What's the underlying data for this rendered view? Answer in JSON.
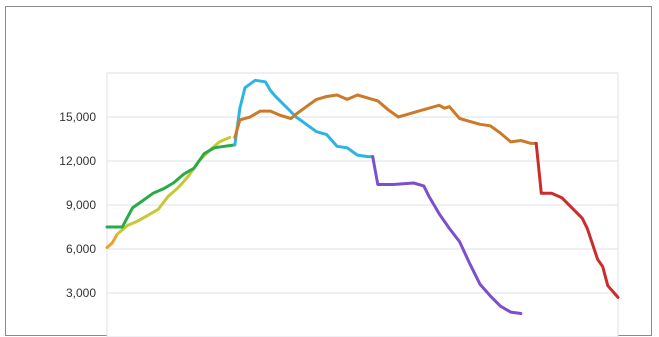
{
  "chart_data": {
    "type": "line",
    "title": "",
    "xlabel": "",
    "ylabel": "",
    "ylim": [
      0,
      18000
    ],
    "xlim": [
      0,
      100
    ],
    "y_ticks": [
      3000,
      6000,
      9000,
      12000,
      15000
    ],
    "y_tick_labels": [
      "3,000",
      "6,000",
      "9,000",
      "12,000",
      "15,000"
    ],
    "grid": "horizontal",
    "legend": "none",
    "series": [
      {
        "color": "#f0a030",
        "x": [
          0,
          1,
          2
        ],
        "y": [
          6100,
          6400,
          7000
        ]
      },
      {
        "color": "#c8c837",
        "x": [
          2,
          4,
          6,
          8,
          10,
          12,
          14,
          16,
          18,
          20,
          22,
          24
        ],
        "y": [
          7000,
          7600,
          7900,
          8300,
          8700,
          9600,
          10200,
          11000,
          12000,
          12700,
          13300,
          13600
        ]
      },
      {
        "color": "#2aaa48",
        "x": [
          0,
          1,
          3,
          5,
          7,
          9,
          11,
          13,
          15,
          17,
          19,
          21,
          23,
          25
        ],
        "y": [
          7500,
          7500,
          7500,
          8800,
          9300,
          9800,
          10100,
          10500,
          11100,
          11500,
          12500,
          12900,
          13000,
          13100
        ]
      },
      {
        "color": "#2bb5e0",
        "x": [
          25,
          26,
          27,
          29,
          31,
          32,
          33,
          35,
          37,
          39,
          41,
          43,
          45,
          47,
          49,
          51,
          52
        ],
        "y": [
          13100,
          15600,
          17000,
          17500,
          17400,
          16800,
          16400,
          15700,
          15000,
          14500,
          14000,
          13800,
          13000,
          12900,
          12400,
          12300,
          12300
        ]
      },
      {
        "color": "#7a50cc",
        "x": [
          52,
          53,
          56,
          60,
          62,
          63,
          65,
          67,
          69,
          71,
          73,
          75,
          77,
          79,
          81
        ],
        "y": [
          12300,
          10400,
          10400,
          10500,
          10300,
          9600,
          8400,
          7400,
          6500,
          5000,
          3600,
          2800,
          2100,
          1700,
          1600
        ]
      },
      {
        "color": "#cc7a29",
        "x": [
          25,
          26,
          28,
          30,
          32,
          34,
          36,
          37,
          39,
          41,
          43,
          45,
          47,
          49,
          51,
          53,
          55,
          57,
          59,
          61,
          63,
          65,
          66,
          67,
          69,
          71,
          73,
          75,
          77,
          79,
          81,
          83,
          84
        ],
        "y": [
          13600,
          14800,
          15000,
          15400,
          15400,
          15100,
          14900,
          15200,
          15700,
          16200,
          16400,
          16500,
          16200,
          16500,
          16300,
          16100,
          15500,
          15000,
          15200,
          15400,
          15600,
          15800,
          15600,
          15700,
          14900,
          14700,
          14500,
          14400,
          13900,
          13300,
          13400,
          13200,
          13200
        ]
      },
      {
        "color": "#cc2c2c",
        "x": [
          84,
          85,
          87,
          89,
          91,
          93,
          94,
          96,
          97,
          98,
          100
        ],
        "y": [
          13200,
          9800,
          9800,
          9500,
          8800,
          8100,
          7400,
          5300,
          4800,
          3500,
          2700
        ]
      }
    ]
  }
}
